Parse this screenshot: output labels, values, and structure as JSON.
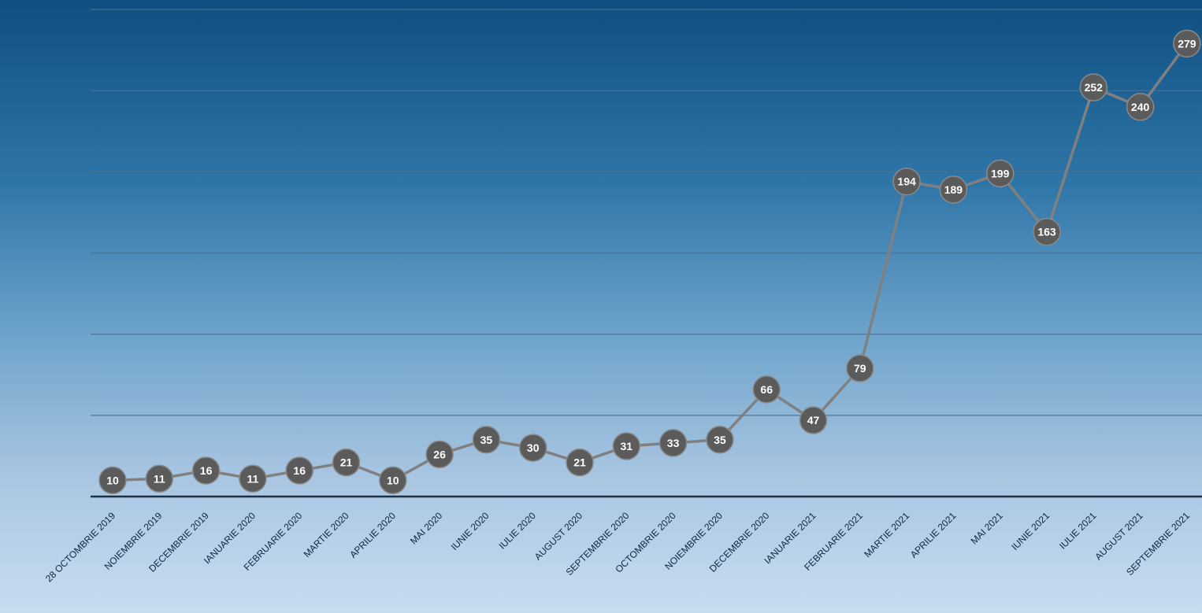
{
  "chart_data": {
    "type": "line",
    "title": "",
    "xlabel": "",
    "ylabel": "",
    "ylim": [
      0,
      300
    ],
    "grid": true,
    "categories": [
      "28 OCTOMBRIE 2019",
      "NOIEMBRIE 2019",
      "DECEMBRIE 2019",
      "IANUARIE 2020",
      "FEBRUARIE 2020",
      "MARTIE 2020",
      "APRILIE 2020",
      "MAI 2020",
      "IUNIE 2020",
      "IULIE 2020",
      "AUGUST 2020",
      "SEPTEMBRIE 2020",
      "OCTOMBRIE 2020",
      "NOIEMBRIE 2020",
      "DECEMBRIE 2020",
      "IANUARIE 2021",
      "FEBRUARIE 2021",
      "MARTIE 2021",
      "APRILIE 2021",
      "MAI 2021",
      "IUNIE 2021",
      "IULIE 2021",
      "AUGUST 2021",
      "SEPTEMBRIE 2021"
    ],
    "values": [
      10,
      11,
      16,
      11,
      16,
      21,
      10,
      26,
      35,
      30,
      21,
      31,
      33,
      35,
      66,
      47,
      79,
      194,
      189,
      199,
      163,
      252,
      240,
      279
    ],
    "colors": {
      "line": "#808080",
      "marker": "#5b5b5b",
      "marker_stroke": "#8a8a8a",
      "gridline": "#4c6f90",
      "axis": "#1b2f45",
      "tick_text": "#0d2640",
      "label_text": "#ffffff"
    }
  }
}
